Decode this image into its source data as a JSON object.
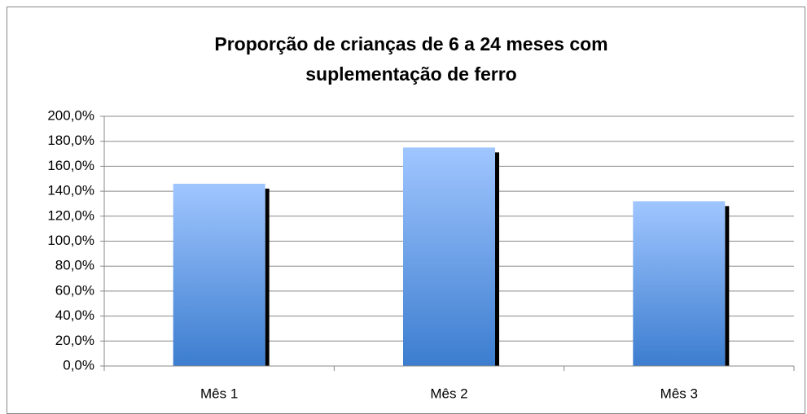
{
  "chart_data": {
    "type": "bar",
    "title": [
      "Proporção de crianças de 6 a 24 meses com",
      "suplementação de ferro"
    ],
    "categories": [
      "Mês 1",
      "Mês 2",
      "Mês 3"
    ],
    "values": [
      146,
      175,
      132
    ],
    "color": "#4a86d6",
    "ylim": [
      0,
      200
    ],
    "yticks": [
      {
        "value": 0,
        "label": "0,0%"
      },
      {
        "value": 20,
        "label": "20,0%"
      },
      {
        "value": 40,
        "label": "40,0%"
      },
      {
        "value": 60,
        "label": "60,0%"
      },
      {
        "value": 80,
        "label": "80,0%"
      },
      {
        "value": 100,
        "label": "100,0%"
      },
      {
        "value": 120,
        "label": "120,0%"
      },
      {
        "value": 140,
        "label": "140,0%"
      },
      {
        "value": 160,
        "label": "160,0%"
      },
      {
        "value": 180,
        "label": "180,0%"
      },
      {
        "value": 200,
        "label": "200,0%"
      }
    ],
    "grid": true
  }
}
